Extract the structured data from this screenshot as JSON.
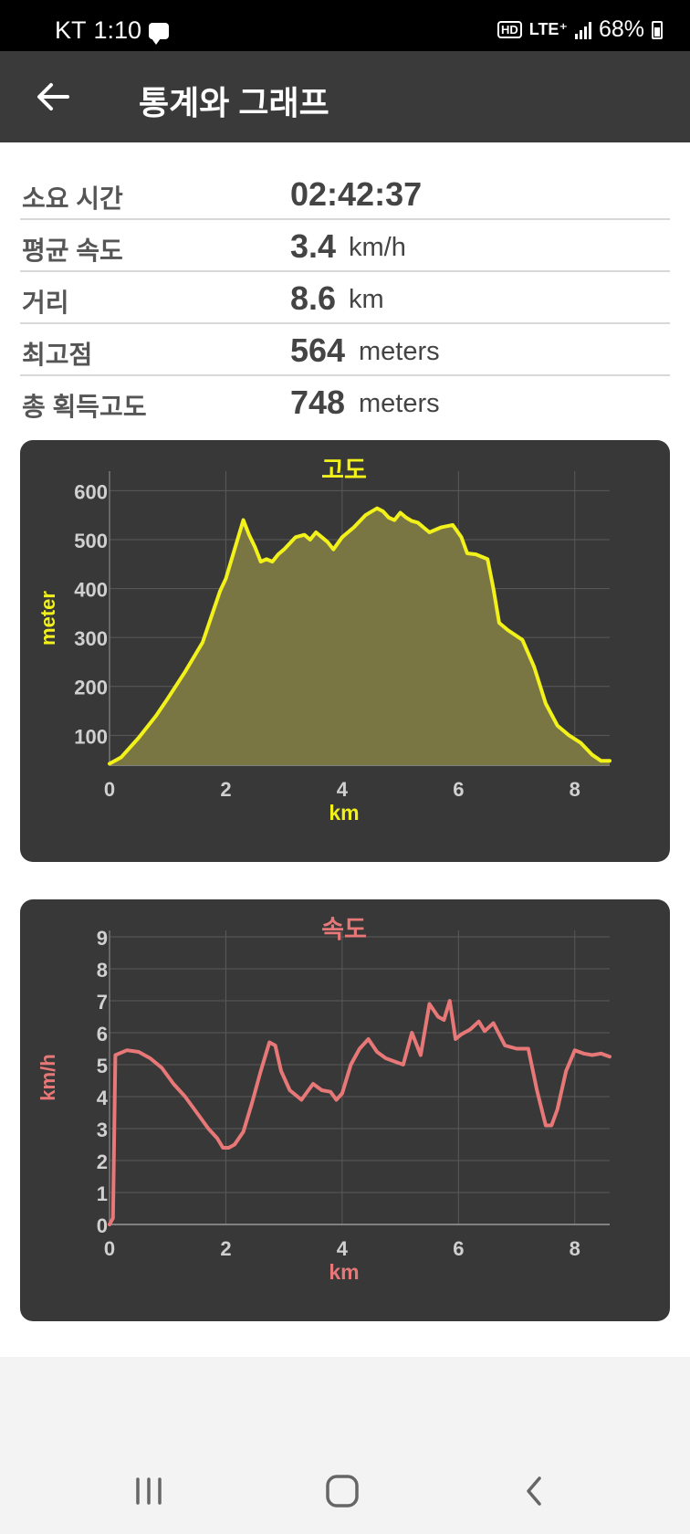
{
  "status_bar": {
    "carrier": "KT",
    "time": "1:10",
    "hd": "HD",
    "network": "LTE⁺",
    "battery": "68%"
  },
  "header": {
    "back_icon": "arrow-left-icon",
    "title": "통계와 그래프"
  },
  "stats": [
    {
      "label": "소요 시간",
      "value": "02:42:37",
      "unit": ""
    },
    {
      "label": "평균 속도",
      "value": "3.4",
      "unit": "km/h"
    },
    {
      "label": "거리",
      "value": "8.6",
      "unit": "km"
    },
    {
      "label": "최고점",
      "value": "564",
      "unit": "meters"
    },
    {
      "label": "총 획득고도",
      "value": "748",
      "unit": "meters"
    }
  ],
  "chart_data": [
    {
      "type": "area",
      "title": "고도",
      "xlabel": "km",
      "ylabel": "meter",
      "color": "#f2f21a",
      "fill": "#7a7643",
      "xlim": [
        0,
        8.6
      ],
      "ylim": [
        39,
        640
      ],
      "xticks": [
        0,
        2,
        4,
        6,
        8
      ],
      "yticks": [
        100,
        200,
        300,
        400,
        500,
        600
      ],
      "grid": true,
      "x": [
        0,
        0.2,
        0.5,
        0.8,
        1.0,
        1.3,
        1.6,
        1.9,
        2.0,
        2.15,
        2.3,
        2.4,
        2.5,
        2.6,
        2.7,
        2.8,
        2.9,
        3.0,
        3.2,
        3.35,
        3.45,
        3.55,
        3.65,
        3.75,
        3.85,
        4.0,
        4.2,
        4.4,
        4.6,
        4.7,
        4.8,
        4.9,
        5.0,
        5.1,
        5.2,
        5.3,
        5.5,
        5.7,
        5.9,
        6.05,
        6.15,
        6.3,
        6.5,
        6.6,
        6.7,
        6.85,
        7.1,
        7.3,
        7.5,
        7.7,
        7.9,
        8.1,
        8.3,
        8.45,
        8.6
      ],
      "y": [
        42,
        55,
        95,
        140,
        175,
        230,
        290,
        395,
        420,
        480,
        540,
        510,
        485,
        455,
        460,
        455,
        470,
        480,
        505,
        510,
        500,
        515,
        505,
        495,
        480,
        505,
        525,
        550,
        564,
        558,
        545,
        540,
        555,
        545,
        538,
        535,
        515,
        525,
        530,
        505,
        472,
        470,
        460,
        400,
        330,
        315,
        295,
        240,
        165,
        120,
        100,
        85,
        60,
        48,
        48
      ]
    },
    {
      "type": "line",
      "title": "속도",
      "xlabel": "km",
      "ylabel": "km/h",
      "color": "#e87878",
      "xlim": [
        0,
        8.6
      ],
      "ylim": [
        0,
        9.2
      ],
      "xticks": [
        0,
        2,
        4,
        6,
        8
      ],
      "yticks": [
        0,
        1,
        2,
        3,
        4,
        5,
        6,
        7,
        8,
        9
      ],
      "grid": true,
      "x": [
        0,
        0.06,
        0.1,
        0.3,
        0.5,
        0.7,
        0.9,
        1.1,
        1.3,
        1.5,
        1.7,
        1.85,
        1.95,
        2.05,
        2.15,
        2.3,
        2.45,
        2.6,
        2.75,
        2.85,
        2.95,
        3.1,
        3.3,
        3.5,
        3.65,
        3.8,
        3.9,
        4.0,
        4.15,
        4.3,
        4.45,
        4.6,
        4.75,
        4.9,
        5.05,
        5.2,
        5.35,
        5.5,
        5.65,
        5.75,
        5.85,
        5.95,
        6.05,
        6.2,
        6.35,
        6.45,
        6.6,
        6.8,
        7.0,
        7.2,
        7.35,
        7.5,
        7.6,
        7.7,
        7.85,
        8.0,
        8.15,
        8.3,
        8.45,
        8.6
      ],
      "y": [
        0,
        0.2,
        5.3,
        5.45,
        5.4,
        5.2,
        4.9,
        4.4,
        4.0,
        3.5,
        3.0,
        2.7,
        2.4,
        2.4,
        2.5,
        2.9,
        3.8,
        4.8,
        5.7,
        5.6,
        4.8,
        4.2,
        3.9,
        4.4,
        4.2,
        4.15,
        3.9,
        4.1,
        5.0,
        5.5,
        5.8,
        5.4,
        5.2,
        5.1,
        5.0,
        6.0,
        5.3,
        6.9,
        6.5,
        6.4,
        7.0,
        5.8,
        5.95,
        6.1,
        6.35,
        6.05,
        6.3,
        5.6,
        5.5,
        5.5,
        4.2,
        3.1,
        3.1,
        3.6,
        4.8,
        5.45,
        5.35,
        5.3,
        5.35,
        5.25
      ]
    }
  ],
  "nav": {
    "recents": "recents-icon",
    "home": "home-icon",
    "back": "back-icon"
  }
}
